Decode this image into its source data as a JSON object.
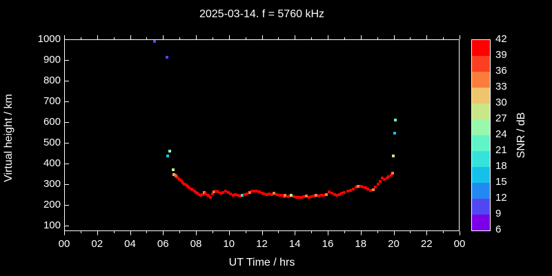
{
  "title": "2025-03-14. f = 5760 kHz",
  "axis_titles": {
    "x": "UT Time / hrs",
    "y": "Virtual height / km"
  },
  "colorbar_title": "SNR / dB",
  "chart_data": {
    "type": "scatter",
    "title": "2025-03-14. f = 5760 kHz",
    "xlabel": "UT Time / hrs",
    "ylabel": "Virtual height / km",
    "xlim": [
      0,
      24
    ],
    "ylim": [
      73,
      1000
    ],
    "grid": false,
    "background_color": "#000000",
    "frame_color": "#ffffff",
    "xticks": [
      0,
      2,
      4,
      6,
      8,
      10,
      12,
      14,
      16,
      18,
      20,
      22,
      24
    ],
    "xtick_labels": [
      "00",
      "02",
      "04",
      "06",
      "08",
      "10",
      "12",
      "14",
      "16",
      "18",
      "20",
      "22",
      "00"
    ],
    "xminor_step_hrs": 1,
    "yticks": [
      100,
      200,
      300,
      400,
      500,
      600,
      700,
      800,
      900,
      1000
    ],
    "colorbar": {
      "label": "SNR / dB",
      "tick_labels": [
        42,
        39,
        36,
        33,
        30,
        27,
        24,
        21,
        18,
        15,
        12,
        9,
        6
      ],
      "db_per_segment": 3,
      "segment_colors_top_to_bottom": [
        "#ff0000",
        "#fc3f22",
        "#fa7d3c",
        "#eec46d",
        "#c8e788",
        "#99f8ab",
        "#60f4c8",
        "#36e2dc",
        "#15c1ea",
        "#2389f2",
        "#5147f2",
        "#7b00e8"
      ]
    },
    "point_format": [
      "time_hrs",
      "virtual_height_km",
      "snr_db"
    ],
    "points": [
      [
        5.5,
        990,
        11
      ],
      [
        6.25,
        912,
        11
      ],
      [
        6.3,
        437,
        17
      ],
      [
        6.4,
        460,
        26
      ],
      [
        6.6,
        371,
        29
      ],
      [
        6.68,
        347,
        32
      ],
      [
        6.75,
        342,
        35
      ],
      [
        6.82,
        337,
        38
      ],
      [
        6.9,
        330,
        41
      ],
      [
        7.0,
        322,
        41
      ],
      [
        7.1,
        315,
        41
      ],
      [
        7.2,
        308,
        41
      ],
      [
        7.3,
        301,
        41
      ],
      [
        7.4,
        295,
        41
      ],
      [
        7.5,
        290,
        41
      ],
      [
        7.6,
        284,
        41
      ],
      [
        7.7,
        278,
        41
      ],
      [
        7.8,
        272,
        41
      ],
      [
        7.9,
        267,
        41
      ],
      [
        8.0,
        261,
        41
      ],
      [
        8.1,
        255,
        41
      ],
      [
        8.2,
        250,
        41
      ],
      [
        8.3,
        246,
        41
      ],
      [
        8.4,
        251,
        41
      ],
      [
        8.5,
        259,
        35
      ],
      [
        8.6,
        252,
        41
      ],
      [
        8.7,
        246,
        41
      ],
      [
        8.8,
        242,
        41
      ],
      [
        8.9,
        238,
        41
      ],
      [
        9.0,
        252,
        41
      ],
      [
        9.1,
        262,
        35
      ],
      [
        9.2,
        266,
        41
      ],
      [
        9.35,
        262,
        41
      ],
      [
        9.5,
        255,
        41
      ],
      [
        9.65,
        260,
        41
      ],
      [
        9.8,
        266,
        41
      ],
      [
        9.95,
        261,
        41
      ],
      [
        10.1,
        252,
        41
      ],
      [
        10.25,
        248,
        41
      ],
      [
        10.4,
        251,
        41
      ],
      [
        10.55,
        246,
        41
      ],
      [
        10.7,
        242,
        41
      ],
      [
        10.8,
        245,
        20
      ],
      [
        10.95,
        249,
        41
      ],
      [
        11.1,
        254,
        41
      ],
      [
        11.25,
        259,
        35
      ],
      [
        11.4,
        266,
        41
      ],
      [
        11.55,
        268,
        41
      ],
      [
        11.7,
        267,
        41
      ],
      [
        11.85,
        263,
        41
      ],
      [
        12.0,
        258,
        41
      ],
      [
        12.15,
        254,
        41
      ],
      [
        12.3,
        251,
        41
      ],
      [
        12.45,
        254,
        41
      ],
      [
        12.6,
        251,
        41
      ],
      [
        12.75,
        258,
        35
      ],
      [
        12.9,
        251,
        41
      ],
      [
        13.05,
        245,
        41
      ],
      [
        13.2,
        247,
        41
      ],
      [
        13.35,
        241,
        41
      ],
      [
        13.4,
        247,
        35
      ],
      [
        13.55,
        241,
        41
      ],
      [
        13.7,
        243,
        41
      ],
      [
        13.8,
        247,
        29
      ],
      [
        13.95,
        241,
        41
      ],
      [
        14.1,
        238,
        41
      ],
      [
        14.25,
        238,
        41
      ],
      [
        14.4,
        237,
        41
      ],
      [
        14.55,
        240,
        41
      ],
      [
        14.7,
        242,
        35
      ],
      [
        14.85,
        238,
        41
      ],
      [
        15.0,
        240,
        41
      ],
      [
        15.15,
        243,
        41
      ],
      [
        15.3,
        246,
        35
      ],
      [
        15.45,
        244,
        41
      ],
      [
        15.6,
        247,
        41
      ],
      [
        15.75,
        245,
        41
      ],
      [
        15.9,
        250,
        35
      ],
      [
        16.1,
        263,
        41
      ],
      [
        16.25,
        255,
        41
      ],
      [
        16.4,
        250,
        41
      ],
      [
        16.55,
        247,
        41
      ],
      [
        16.7,
        250,
        41
      ],
      [
        16.85,
        255,
        41
      ],
      [
        17.0,
        260,
        41
      ],
      [
        17.2,
        267,
        41
      ],
      [
        17.4,
        270,
        41
      ],
      [
        17.55,
        278,
        41
      ],
      [
        17.7,
        287,
        41
      ],
      [
        17.85,
        290,
        35
      ],
      [
        18.0,
        290,
        41
      ],
      [
        18.15,
        288,
        41
      ],
      [
        18.3,
        283,
        41
      ],
      [
        18.45,
        277,
        41
      ],
      [
        18.6,
        271,
        41
      ],
      [
        18.75,
        274,
        35
      ],
      [
        18.9,
        287,
        41
      ],
      [
        19.05,
        300,
        41
      ],
      [
        19.2,
        313,
        41
      ],
      [
        19.3,
        330,
        41
      ],
      [
        19.45,
        324,
        41
      ],
      [
        19.6,
        330,
        41
      ],
      [
        19.7,
        337,
        41
      ],
      [
        19.85,
        344,
        41
      ],
      [
        19.95,
        352,
        35
      ],
      [
        19.97,
        437,
        29
      ],
      [
        20.05,
        547,
        17
      ],
      [
        20.1,
        610,
        23
      ]
    ]
  }
}
